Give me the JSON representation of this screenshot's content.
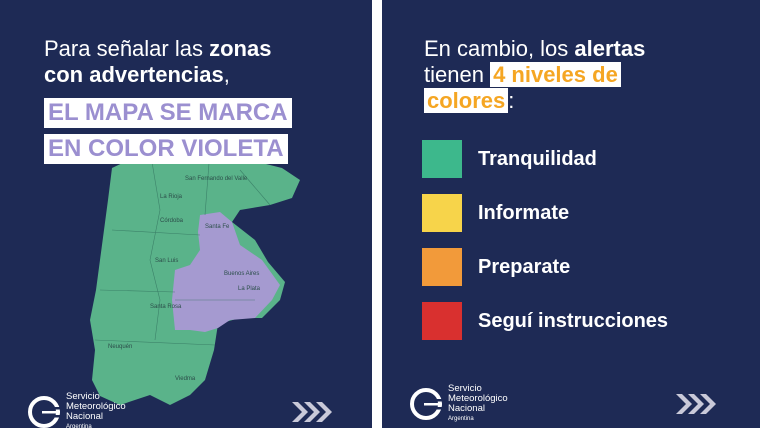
{
  "left": {
    "line1_prefix": "Para señalar las ",
    "line1_bold": "zonas",
    "line2_bold": "con advertencias",
    "line2_suffix": ",",
    "highlight1": "EL MAPA SE MARCA",
    "highlight2": "EN COLOR VIOLETA",
    "map_colors": {
      "green": "#5ab38a",
      "violet": "#a59ad0"
    }
  },
  "right": {
    "line1_prefix": "En cambio, los ",
    "line1_bold": "alertas",
    "line2_prefix": "tienen ",
    "line2_orange": "4 niveles de",
    "line3_orange": "colores",
    "line3_suffix": ":",
    "levels": [
      {
        "label": "Tranquilidad",
        "color": "#3db88c"
      },
      {
        "label": "Informate",
        "color": "#f7d44a"
      },
      {
        "label": "Preparate",
        "color": "#f29a3a"
      },
      {
        "label": "Seguí instrucciones",
        "color": "#d9302f"
      }
    ]
  },
  "brand": {
    "line1": "Servicio",
    "line2": "Meteorológico",
    "line3": "Nacional",
    "line4": "Argentina",
    "icon": "smn-logo-icon",
    "arrows_icon": "triple-chevron-icon"
  }
}
